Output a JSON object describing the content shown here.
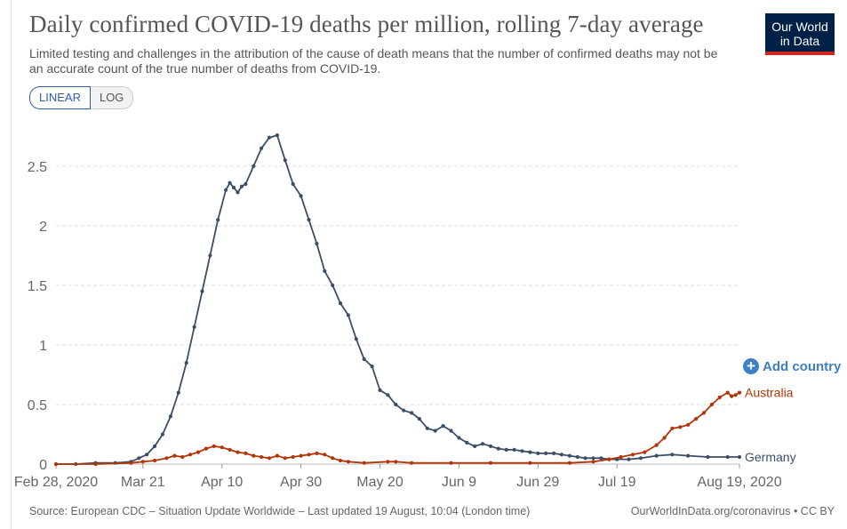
{
  "header": {
    "title": "Daily confirmed COVID-19 deaths per million, rolling 7-day average",
    "subtitle": "Limited testing and challenges in the attribution of the cause of death means that the number of confirmed deaths may not be an accurate count of the true number of deaths from COVID-19."
  },
  "logo": {
    "line1": "Our World",
    "line2": "in Data",
    "bg_color": "#002147",
    "accent_color": "#ce261e"
  },
  "scale_toggle": {
    "linear_label": "LINEAR",
    "log_label": "LOG",
    "selected": "LINEAR"
  },
  "add_country": {
    "label": "Add country",
    "icon": "plus-circle-icon"
  },
  "footer": {
    "source": "Source: European CDC – Situation Update Worldwide – Last updated 19 August, 10:04 (London time)",
    "link": "OurWorldInData.org/coronavirus • CC BY"
  },
  "chart_data": {
    "type": "line",
    "title": "Daily confirmed COVID-19 deaths per million, rolling 7-day average",
    "x_tick_labels": [
      "Feb 28, 2020",
      "Mar 21",
      "Apr 10",
      "Apr 30",
      "May 20",
      "Jun 9",
      "Jun 29",
      "Jul 19",
      "Aug 19, 2020"
    ],
    "x_tick_days": [
      0,
      22,
      42,
      62,
      82,
      102,
      122,
      142,
      173
    ],
    "y_ticks": [
      0,
      0.5,
      1,
      1.5,
      2,
      2.5
    ],
    "y_tick_labels": [
      "0",
      "0.5",
      "1",
      "1.5",
      "2",
      "2.5"
    ],
    "ylim": [
      0,
      2.85
    ],
    "grid": "horizontal-dashed",
    "legend": "end-of-line labels",
    "series": [
      {
        "name": "Germany",
        "color": "#3c4e66",
        "points": [
          [
            0,
            0
          ],
          [
            5,
            0
          ],
          [
            10,
            0.01
          ],
          [
            15,
            0.01
          ],
          [
            19,
            0.02
          ],
          [
            21,
            0.05
          ],
          [
            23,
            0.08
          ],
          [
            25,
            0.15
          ],
          [
            27,
            0.25
          ],
          [
            29,
            0.4
          ],
          [
            31,
            0.6
          ],
          [
            33,
            0.85
          ],
          [
            35,
            1.15
          ],
          [
            37,
            1.45
          ],
          [
            39,
            1.75
          ],
          [
            41,
            2.05
          ],
          [
            43,
            2.3
          ],
          [
            44,
            2.36
          ],
          [
            45,
            2.32
          ],
          [
            46,
            2.28
          ],
          [
            47,
            2.33
          ],
          [
            48,
            2.35
          ],
          [
            50,
            2.5
          ],
          [
            52,
            2.65
          ],
          [
            54,
            2.74
          ],
          [
            56,
            2.76
          ],
          [
            58,
            2.55
          ],
          [
            60,
            2.35
          ],
          [
            62,
            2.25
          ],
          [
            64,
            2.05
          ],
          [
            66,
            1.85
          ],
          [
            68,
            1.62
          ],
          [
            70,
            1.5
          ],
          [
            72,
            1.35
          ],
          [
            74,
            1.25
          ],
          [
            76,
            1.05
          ],
          [
            78,
            0.88
          ],
          [
            80,
            0.82
          ],
          [
            82,
            0.62
          ],
          [
            84,
            0.58
          ],
          [
            86,
            0.5
          ],
          [
            88,
            0.45
          ],
          [
            90,
            0.43
          ],
          [
            92,
            0.38
          ],
          [
            94,
            0.3
          ],
          [
            96,
            0.28
          ],
          [
            98,
            0.32
          ],
          [
            100,
            0.28
          ],
          [
            102,
            0.22
          ],
          [
            104,
            0.18
          ],
          [
            106,
            0.15
          ],
          [
            108,
            0.17
          ],
          [
            110,
            0.15
          ],
          [
            112,
            0.13
          ],
          [
            114,
            0.12
          ],
          [
            116,
            0.12
          ],
          [
            118,
            0.11
          ],
          [
            120,
            0.1
          ],
          [
            122,
            0.09
          ],
          [
            124,
            0.09
          ],
          [
            126,
            0.09
          ],
          [
            128,
            0.08
          ],
          [
            130,
            0.07
          ],
          [
            132,
            0.06
          ],
          [
            134,
            0.05
          ],
          [
            136,
            0.05
          ],
          [
            138,
            0.05
          ],
          [
            140,
            0.04
          ],
          [
            142,
            0.04
          ],
          [
            145,
            0.04
          ],
          [
            148,
            0.05
          ],
          [
            152,
            0.07
          ],
          [
            156,
            0.08
          ],
          [
            160,
            0.07
          ],
          [
            165,
            0.06
          ],
          [
            170,
            0.06
          ],
          [
            173,
            0.06
          ]
        ]
      },
      {
        "name": "Australia",
        "color": "#b13507",
        "points": [
          [
            0,
            0
          ],
          [
            10,
            0
          ],
          [
            19,
            0.01
          ],
          [
            22,
            0.02
          ],
          [
            25,
            0.03
          ],
          [
            28,
            0.05
          ],
          [
            30,
            0.07
          ],
          [
            32,
            0.06
          ],
          [
            34,
            0.08
          ],
          [
            36,
            0.1
          ],
          [
            38,
            0.13
          ],
          [
            40,
            0.15
          ],
          [
            42,
            0.14
          ],
          [
            44,
            0.12
          ],
          [
            46,
            0.1
          ],
          [
            48,
            0.09
          ],
          [
            50,
            0.07
          ],
          [
            52,
            0.06
          ],
          [
            54,
            0.05
          ],
          [
            56,
            0.07
          ],
          [
            58,
            0.05
          ],
          [
            60,
            0.06
          ],
          [
            62,
            0.07
          ],
          [
            64,
            0.08
          ],
          [
            66,
            0.09
          ],
          [
            68,
            0.08
          ],
          [
            70,
            0.05
          ],
          [
            72,
            0.03
          ],
          [
            74,
            0.02
          ],
          [
            78,
            0.01
          ],
          [
            84,
            0.02
          ],
          [
            86,
            0.02
          ],
          [
            90,
            0.01
          ],
          [
            100,
            0.01
          ],
          [
            110,
            0.01
          ],
          [
            120,
            0.01
          ],
          [
            130,
            0.01
          ],
          [
            136,
            0.02
          ],
          [
            140,
            0.04
          ],
          [
            143,
            0.06
          ],
          [
            146,
            0.08
          ],
          [
            149,
            0.1
          ],
          [
            152,
            0.16
          ],
          [
            154,
            0.22
          ],
          [
            156,
            0.3
          ],
          [
            158,
            0.31
          ],
          [
            160,
            0.33
          ],
          [
            162,
            0.38
          ],
          [
            164,
            0.43
          ],
          [
            166,
            0.5
          ],
          [
            168,
            0.56
          ],
          [
            170,
            0.6
          ],
          [
            171,
            0.57
          ],
          [
            172,
            0.58
          ],
          [
            173,
            0.6
          ]
        ]
      }
    ]
  }
}
